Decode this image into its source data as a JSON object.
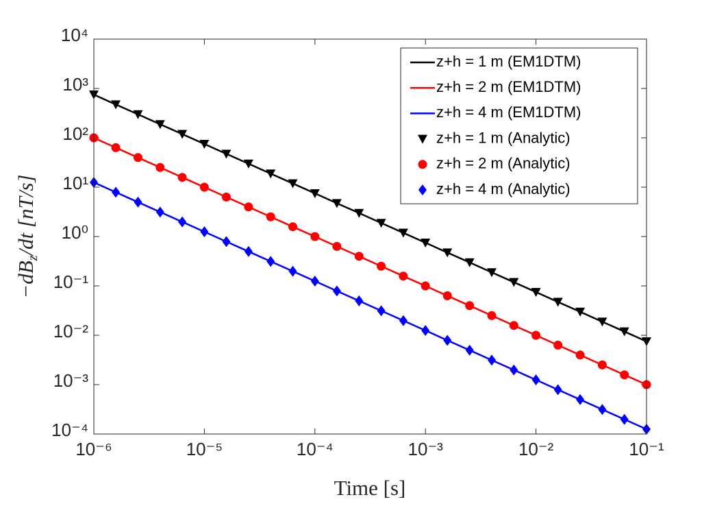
{
  "chart_data": {
    "type": "line",
    "xlabel": "Time [s]",
    "ylabel": [
      "−dB",
      "z",
      "/dt [nT/s]"
    ],
    "xscale": "log",
    "yscale": "log",
    "xlim": [
      1e-06,
      0.1
    ],
    "ylim": [
      0.0001,
      10000
    ],
    "xticks": [
      {
        "value": 1e-06,
        "label": "10⁻⁶"
      },
      {
        "value": 1e-05,
        "label": "10⁻⁵"
      },
      {
        "value": 0.0001,
        "label": "10⁻⁴"
      },
      {
        "value": 0.001,
        "label": "10⁻³"
      },
      {
        "value": 0.01,
        "label": "10⁻²"
      },
      {
        "value": 0.1,
        "label": "10⁻¹"
      }
    ],
    "yticks": [
      {
        "value": 0.0001,
        "label": "10⁻⁴"
      },
      {
        "value": 0.001,
        "label": "10⁻³"
      },
      {
        "value": 0.01,
        "label": "10⁻²"
      },
      {
        "value": 0.1,
        "label": "10⁻¹"
      },
      {
        "value": 1,
        "label": "10⁰"
      },
      {
        "value": 10,
        "label": "10¹"
      },
      {
        "value": 100,
        "label": "10²"
      },
      {
        "value": 1000,
        "label": "10³"
      },
      {
        "value": 10000,
        "label": "10⁴"
      }
    ],
    "grid": false,
    "legend": "top-right",
    "x": [
      1e-06,
      1.58e-06,
      2.51e-06,
      3.98e-06,
      6.31e-06,
      1e-05,
      1.58e-05,
      2.51e-05,
      3.98e-05,
      6.31e-05,
      0.0001,
      0.000158,
      0.000251,
      0.000398,
      0.000631,
      0.001,
      0.00158,
      0.00251,
      0.00398,
      0.00631,
      0.01,
      0.0158,
      0.0251,
      0.0398,
      0.0631,
      0.1
    ],
    "series": [
      {
        "name": "z+h = 1 m (EM1DTM)",
        "color": "#000000",
        "style": "line",
        "values": [
          750,
          473,
          299,
          188,
          119,
          75,
          47.3,
          29.9,
          18.8,
          11.9,
          7.5,
          4.73,
          2.99,
          1.88,
          1.19,
          0.75,
          0.473,
          0.299,
          0.188,
          0.119,
          0.075,
          0.0473,
          0.0299,
          0.0188,
          0.0119,
          0.0075
        ]
      },
      {
        "name": "z+h = 2 m (EM1DTM)",
        "color": "#ff0000",
        "style": "line",
        "values": [
          100,
          63.1,
          39.8,
          25.1,
          15.8,
          10,
          6.31,
          3.98,
          2.51,
          1.58,
          1,
          0.631,
          0.398,
          0.251,
          0.158,
          0.1,
          0.0631,
          0.0398,
          0.0251,
          0.0158,
          0.01,
          0.00631,
          0.00398,
          0.00251,
          0.00158,
          0.001
        ]
      },
      {
        "name": "z+h = 4 m (EM1DTM)",
        "color": "#0000ff",
        "style": "line",
        "values": [
          12.5,
          7.89,
          4.98,
          3.14,
          1.98,
          1.25,
          0.789,
          0.498,
          0.314,
          0.198,
          0.125,
          0.0789,
          0.0498,
          0.0314,
          0.0198,
          0.0125,
          0.00789,
          0.00498,
          0.00314,
          0.00198,
          0.00125,
          0.000789,
          0.000498,
          0.000314,
          0.000198,
          0.000125
        ]
      },
      {
        "name": "z+h = 1 m (Analytic)",
        "color": "#000000",
        "style": "triangle-down",
        "values": [
          750,
          473,
          299,
          188,
          119,
          75,
          47.3,
          29.9,
          18.8,
          11.9,
          7.5,
          4.73,
          2.99,
          1.88,
          1.19,
          0.75,
          0.473,
          0.299,
          0.188,
          0.119,
          0.075,
          0.0473,
          0.0299,
          0.0188,
          0.0119,
          0.0075
        ]
      },
      {
        "name": "z+h = 2 m (Analytic)",
        "color": "#ff0000",
        "style": "circle",
        "values": [
          100,
          63.1,
          39.8,
          25.1,
          15.8,
          10,
          6.31,
          3.98,
          2.51,
          1.58,
          1,
          0.631,
          0.398,
          0.251,
          0.158,
          0.1,
          0.0631,
          0.0398,
          0.0251,
          0.0158,
          0.01,
          0.00631,
          0.00398,
          0.00251,
          0.00158,
          0.001
        ]
      },
      {
        "name": "z+h = 4 m (Analytic)",
        "color": "#0000ff",
        "style": "diamond",
        "values": [
          12.5,
          7.89,
          4.98,
          3.14,
          1.98,
          1.25,
          0.789,
          0.498,
          0.314,
          0.198,
          0.125,
          0.0789,
          0.0498,
          0.0314,
          0.0198,
          0.0125,
          0.00789,
          0.00498,
          0.00314,
          0.00198,
          0.00125,
          0.000789,
          0.000498,
          0.000314,
          0.000198,
          0.000125
        ]
      }
    ]
  }
}
